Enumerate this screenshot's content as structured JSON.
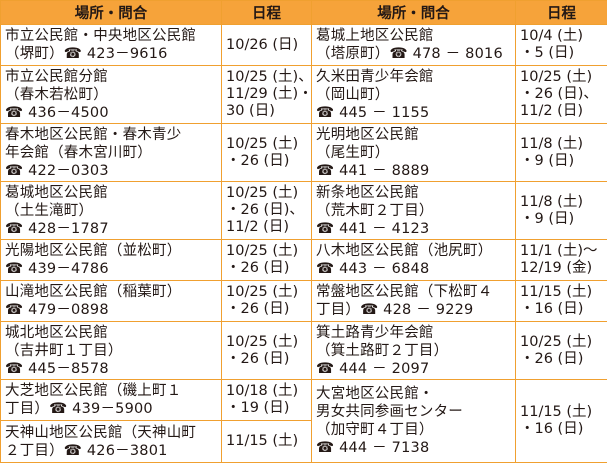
{
  "header": {
    "place_label": "場所・問合",
    "date_label": "日程"
  },
  "left_rows": [
    {
      "place": "市立公民館・中央地区公民館\n（堺町）☎ 423－9616",
      "dates": "10/26 (日)"
    },
    {
      "place": "市立公民館分館\n（春木若松町）\n☎ 436－4500",
      "dates": "10/25 (土)、\n11/29 (土)・\n30 (日)"
    },
    {
      "place": "春木地区公民館・春木青少\n年会館（春木宮川町）\n☎ 422－0303",
      "dates": "10/25 (土)\n・26 (日)"
    },
    {
      "place": "葛城地区公民館\n（土生滝町）\n☎ 428－1787",
      "dates": "10/25 (土)\n・26 (日)、\n11/2 (日)"
    },
    {
      "place": "光陽地区公民館（並松町）\n☎ 439－4786",
      "dates": "10/25 (土)\n・26 (日)"
    },
    {
      "place": "山滝地区公民館（稲葉町）\n☎ 479－0898",
      "dates": "10/25 (土)\n・26 (日)"
    },
    {
      "place": "城北地区公民館\n（吉井町１丁目）\n☎ 445－8578",
      "dates": "10/25 (土)\n・26 (日)"
    },
    {
      "place": "大芝地区公民館（磯上町１\n丁目）☎ 439－5900",
      "dates": "10/18 (土)\n・19 (日)"
    },
    {
      "place": "天神山地区公民館（天神山町\n２丁目）☎ 426－3801",
      "dates": "11/15 (土)"
    }
  ],
  "right_rows": [
    {
      "place": "葛城上地区公民館\n（塔原町）☎ 478 － 8016",
      "dates": "10/4 (土)\n・5 (日)"
    },
    {
      "place": "久米田青少年会館\n（岡山町）\n☎ 445 － 1155",
      "dates": "10/25 (土)\n・26 (日)、\n11/2 (日)"
    },
    {
      "place": "光明地区公民館\n（尾生町）\n☎ 441 － 8889",
      "dates": "11/8 (土)\n・9 (日)"
    },
    {
      "place": "新条地区公民館\n（荒木町２丁目）\n☎ 441 － 4123",
      "dates": "11/8 (土)\n・9 (日)"
    },
    {
      "place": "八木地区公民館（池尻町）\n☎ 443 － 6848",
      "dates": "11/1 (土)～\n12/19 (金)"
    },
    {
      "place": "常盤地区公民館（下松町４\n丁目）☎ 428 － 9229",
      "dates": "11/15 (土)\n・16 (日)"
    },
    {
      "place": "箕土路青少年会館\n（箕土路町２丁目）\n☎ 444 － 2097",
      "dates": "10/25 (土)\n・26 (日)"
    },
    {
      "place": "大宮地区公民館・\n男女共同参画センター\n（加守町４丁目）\n☎ 444 － 7138",
      "dates": "11/15 (土)\n・16 (日)"
    }
  ]
}
